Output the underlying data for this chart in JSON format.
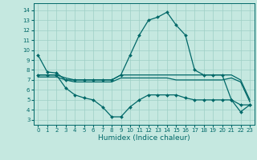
{
  "xlabel": "Humidex (Indice chaleur)",
  "bg_color": "#c5e8e0",
  "line_color": "#006868",
  "grid_color": "#9ecfc5",
  "xlim": [
    -0.5,
    23.5
  ],
  "ylim": [
    2.5,
    14.7
  ],
  "xticks": [
    0,
    1,
    2,
    3,
    4,
    5,
    6,
    7,
    8,
    9,
    10,
    11,
    12,
    13,
    14,
    15,
    16,
    17,
    18,
    19,
    20,
    21,
    22,
    23
  ],
  "yticks": [
    3,
    4,
    5,
    6,
    7,
    8,
    9,
    10,
    11,
    12,
    13,
    14
  ],
  "line1_x": [
    0,
    1,
    2,
    3,
    4,
    5,
    6,
    7,
    8,
    9,
    10,
    11,
    12,
    13,
    14,
    15,
    16,
    17,
    18,
    19,
    20,
    21,
    22,
    23
  ],
  "line1_y": [
    9.5,
    7.8,
    7.7,
    7.0,
    7.0,
    7.0,
    7.0,
    7.0,
    7.0,
    7.5,
    9.5,
    11.5,
    13.0,
    13.3,
    13.8,
    12.5,
    11.5,
    8.0,
    7.5,
    7.5,
    7.5,
    5.0,
    4.5,
    4.5
  ],
  "line2_x": [
    0,
    1,
    2,
    3,
    4,
    5,
    6,
    7,
    8,
    9,
    10,
    11,
    12,
    13,
    14,
    15,
    16,
    17,
    18,
    19,
    20,
    21,
    22,
    23
  ],
  "line2_y": [
    7.5,
    7.5,
    7.5,
    6.2,
    5.5,
    5.2,
    5.0,
    4.3,
    3.3,
    3.3,
    4.3,
    5.0,
    5.5,
    5.5,
    5.5,
    5.5,
    5.2,
    5.0,
    5.0,
    5.0,
    5.0,
    5.0,
    3.8,
    4.5
  ],
  "line3_x": [
    0,
    1,
    2,
    3,
    4,
    5,
    6,
    7,
    8,
    9,
    10,
    11,
    12,
    13,
    14,
    15,
    16,
    17,
    18,
    19,
    20,
    21,
    22,
    23
  ],
  "line3_y": [
    7.5,
    7.5,
    7.5,
    7.2,
    7.0,
    7.0,
    7.0,
    7.0,
    7.0,
    7.5,
    7.5,
    7.5,
    7.5,
    7.5,
    7.5,
    7.5,
    7.5,
    7.5,
    7.5,
    7.5,
    7.5,
    7.5,
    7.0,
    5.0
  ],
  "line4_x": [
    0,
    1,
    2,
    3,
    4,
    5,
    6,
    7,
    8,
    9,
    10,
    11,
    12,
    13,
    14,
    15,
    16,
    17,
    18,
    19,
    20,
    21,
    22,
    23
  ],
  "line4_y": [
    7.3,
    7.3,
    7.3,
    7.0,
    6.8,
    6.8,
    6.8,
    6.8,
    6.8,
    7.2,
    7.2,
    7.2,
    7.2,
    7.2,
    7.2,
    7.0,
    7.0,
    7.0,
    7.0,
    7.0,
    7.0,
    7.2,
    6.8,
    4.8
  ]
}
